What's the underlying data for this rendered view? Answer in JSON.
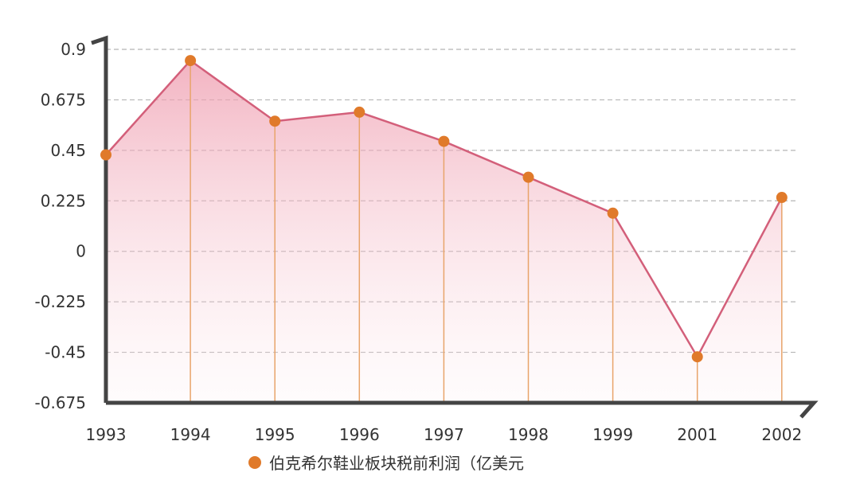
{
  "chart_data": {
    "type": "area",
    "categories": [
      "1993",
      "1994",
      "1995",
      "1996",
      "1997",
      "1998",
      "1999",
      "2001",
      "2002"
    ],
    "series": [
      {
        "name": "伯克希尔鞋业板块税前利润（亿美元",
        "values": [
          0.43,
          0.85,
          0.58,
          0.62,
          0.49,
          0.33,
          0.17,
          -0.47,
          0.24
        ]
      }
    ],
    "y_ticks": [
      "0.9",
      "0.675",
      "0.45",
      "0.225",
      "0",
      "-0.225",
      "-0.45",
      "-0.675"
    ],
    "ylim": [
      -0.675,
      0.9
    ],
    "grid": true,
    "legend_position": "bottom",
    "colors": {
      "line": "#d35f7a",
      "fill": "#f2b8c4",
      "marker": "#e07a2a",
      "drop_line": "#e8a46a",
      "grid": "#b5b5b5",
      "axis": "#444444"
    }
  }
}
